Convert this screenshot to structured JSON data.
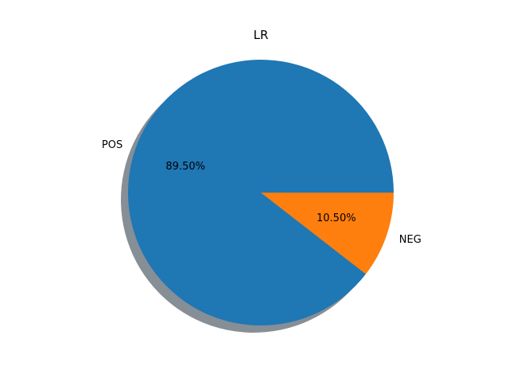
{
  "chart_data": {
    "type": "pie",
    "title": "LR",
    "labels": [
      "POS",
      "NEG"
    ],
    "values": [
      89.5,
      10.5
    ],
    "autopct": [
      "89.50%",
      "10.50%"
    ],
    "colors": [
      "#1f77b4",
      "#ff7f0e"
    ],
    "shadow_color": "#868e96",
    "start_angle": 0,
    "direction": "counterclockwise",
    "shadow": true,
    "legend": "none"
  }
}
